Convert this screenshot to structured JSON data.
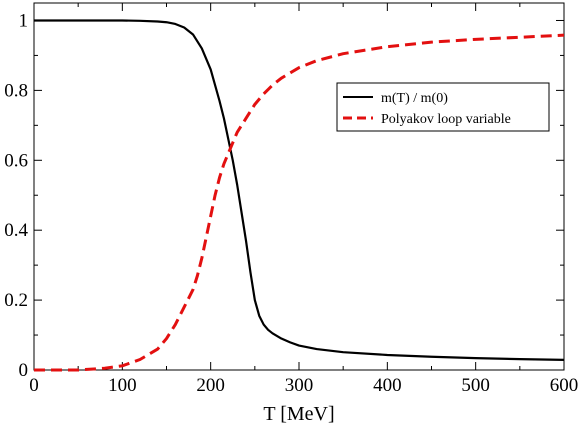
{
  "chart_data": {
    "type": "line",
    "title": "",
    "xlabel": "T [MeV]",
    "ylabel": "",
    "xlim": [
      0,
      600
    ],
    "ylim": [
      0,
      1.05
    ],
    "grid": false,
    "legend_position": "top-right",
    "x_ticks": [
      0,
      100,
      200,
      300,
      400,
      500,
      600
    ],
    "x_tick_labels": [
      "0",
      "100",
      "200",
      "300",
      "400",
      "500",
      "600"
    ],
    "y_ticks": [
      0,
      0.2,
      0.4,
      0.6,
      0.8,
      1
    ],
    "y_tick_labels": [
      "0",
      "0.2",
      "0.4",
      "0.6",
      "0.8",
      "1"
    ],
    "series": [
      {
        "name": "m(T) / m(0)",
        "color": "#000000",
        "style": "solid",
        "x": [
          0,
          50,
          100,
          120,
          140,
          150,
          160,
          170,
          180,
          190,
          200,
          210,
          215,
          220,
          225,
          230,
          235,
          240,
          245,
          250,
          255,
          260,
          265,
          270,
          280,
          290,
          300,
          320,
          350,
          400,
          450,
          500,
          550,
          600
        ],
        "y": [
          1.0,
          1.0,
          1.0,
          0.999,
          0.997,
          0.995,
          0.99,
          0.98,
          0.96,
          0.92,
          0.86,
          0.77,
          0.72,
          0.66,
          0.6,
          0.53,
          0.45,
          0.37,
          0.28,
          0.2,
          0.155,
          0.13,
          0.115,
          0.105,
          0.09,
          0.079,
          0.07,
          0.06,
          0.051,
          0.043,
          0.038,
          0.034,
          0.031,
          0.029
        ]
      },
      {
        "name": "Polyakov loop variable",
        "color": "#e31010",
        "style": "dashed",
        "x": [
          0,
          50,
          80,
          100,
          120,
          140,
          150,
          160,
          170,
          180,
          185,
          190,
          195,
          200,
          205,
          210,
          215,
          220,
          225,
          230,
          240,
          250,
          260,
          270,
          280,
          300,
          320,
          350,
          400,
          450,
          500,
          550,
          600
        ],
        "y": [
          0.0,
          0.0,
          0.005,
          0.012,
          0.03,
          0.06,
          0.09,
          0.13,
          0.18,
          0.23,
          0.27,
          0.32,
          0.38,
          0.44,
          0.5,
          0.55,
          0.59,
          0.62,
          0.65,
          0.68,
          0.72,
          0.76,
          0.79,
          0.815,
          0.835,
          0.865,
          0.885,
          0.905,
          0.925,
          0.938,
          0.946,
          0.952,
          0.958
        ]
      }
    ]
  }
}
